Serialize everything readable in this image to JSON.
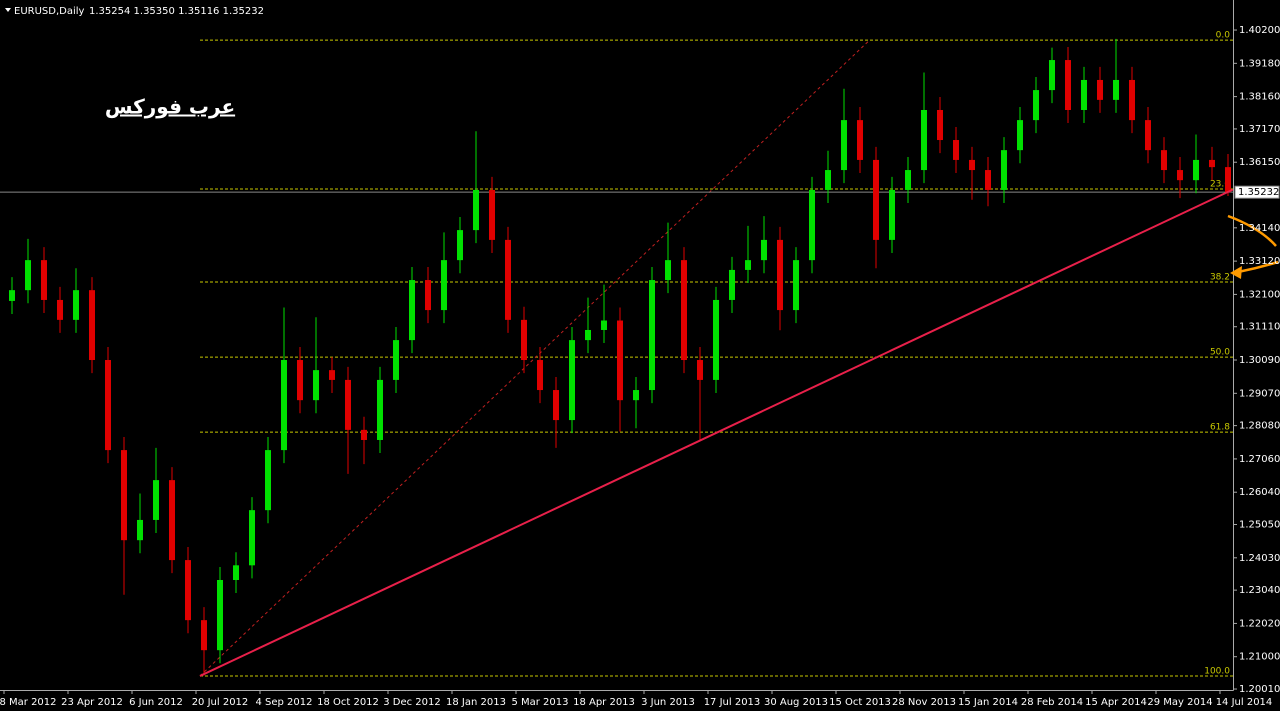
{
  "chart_data": {
    "type": "candlestick",
    "title": "EURUSD,Daily",
    "header_quote": "1.35254 1.35350 1.35116 1.35232",
    "watermark": "عرب فوركس",
    "x_labels": [
      "8 Mar 2012",
      "23 Apr 2012",
      "6 Jun 2012",
      "20 Jul 2012",
      "4 Sep 2012",
      "18 Oct 2012",
      "3 Dec 2012",
      "18 Jan 2013",
      "5 Mar 2013",
      "18 Apr 2013",
      "3 Jun 2013",
      "17 Jul 2013",
      "30 Aug 2013",
      "15 Oct 2013",
      "28 Nov 2013",
      "15 Jan 2014",
      "28 Feb 2014",
      "15 Apr 2014",
      "29 May 2014",
      "14 Jul 2014"
    ],
    "open": [
      1.319,
      1.3223,
      1.3315,
      1.3193,
      1.3132,
      1.3223,
      1.3009,
      1.2733,
      1.2457,
      1.2519,
      1.2641,
      1.2396,
      1.2212,
      1.212,
      1.2335,
      1.238,
      1.2549,
      1.2733,
      1.3009,
      1.2886,
      1.2978,
      1.2948,
      1.2795,
      1.2764,
      1.2948,
      1.307,
      1.3254,
      1.3162,
      1.3315,
      1.3407,
      1.353,
      1.3377,
      1.3132,
      1.3009,
      1.2917,
      1.2825,
      1.307,
      1.3101,
      1.313,
      1.2886,
      1.2917,
      1.3254,
      1.3315,
      1.3009,
      1.2948,
      1.3193,
      1.3285,
      1.3315,
      1.3377,
      1.3162,
      1.3315,
      1.353,
      1.3591,
      1.3744,
      1.3622,
      1.3377,
      1.353,
      1.3591,
      1.3775,
      1.3683,
      1.3622,
      1.3591,
      1.353,
      1.3652,
      1.3744,
      1.3836,
      1.3928,
      1.3775,
      1.3867,
      1.3806,
      1.3867,
      1.3744,
      1.3652,
      1.3591,
      1.356,
      1.3622,
      1.36
    ],
    "high": [
      1.3263,
      1.338,
      1.3355,
      1.3233,
      1.329,
      1.3263,
      1.3049,
      1.2773,
      1.26,
      1.274,
      1.2681,
      1.2436,
      1.2252,
      1.2375,
      1.242,
      1.2589,
      1.2773,
      1.317,
      1.3049,
      1.314,
      1.3018,
      1.2988,
      1.2835,
      1.2988,
      1.311,
      1.3294,
      1.3294,
      1.34,
      1.3447,
      1.371,
      1.357,
      1.3417,
      1.3172,
      1.3049,
      1.2957,
      1.311,
      1.32,
      1.324,
      1.317,
      1.2957,
      1.3294,
      1.343,
      1.3355,
      1.3049,
      1.3233,
      1.3325,
      1.342,
      1.345,
      1.3417,
      1.3355,
      1.357,
      1.365,
      1.384,
      1.3784,
      1.3662,
      1.357,
      1.3631,
      1.389,
      1.3815,
      1.3723,
      1.3662,
      1.3631,
      1.3692,
      1.3784,
      1.3876,
      1.3966,
      1.3968,
      1.3907,
      1.3907,
      1.3993,
      1.3907,
      1.3784,
      1.3692,
      1.3631,
      1.37,
      1.3662,
      1.364
    ],
    "low": [
      1.315,
      1.3183,
      1.3153,
      1.3092,
      1.3092,
      1.2969,
      1.2693,
      1.229,
      1.2417,
      1.2479,
      1.2356,
      1.2172,
      1.2042,
      1.208,
      1.2295,
      1.234,
      1.2509,
      1.2693,
      1.2846,
      1.2846,
      1.2908,
      1.266,
      1.269,
      1.2724,
      1.2908,
      1.303,
      1.3122,
      1.3122,
      1.3275,
      1.3367,
      1.3337,
      1.3092,
      1.2969,
      1.2877,
      1.274,
      1.2785,
      1.303,
      1.3061,
      1.279,
      1.28,
      1.2877,
      1.3214,
      1.2969,
      1.276,
      1.2908,
      1.3153,
      1.3245,
      1.3275,
      1.31,
      1.3122,
      1.3275,
      1.349,
      1.3551,
      1.3582,
      1.329,
      1.3337,
      1.349,
      1.3551,
      1.3643,
      1.3582,
      1.35,
      1.348,
      1.349,
      1.3612,
      1.3704,
      1.3796,
      1.3735,
      1.3735,
      1.3766,
      1.3766,
      1.3704,
      1.3612,
      1.3551,
      1.3505,
      1.352,
      1.356,
      1.35116
    ],
    "close": [
      1.3223,
      1.3315,
      1.3193,
      1.3132,
      1.3223,
      1.3009,
      1.2733,
      1.2457,
      1.2519,
      1.2641,
      1.2396,
      1.2212,
      1.212,
      1.2335,
      1.238,
      1.2549,
      1.2733,
      1.3009,
      1.2886,
      1.2978,
      1.2948,
      1.2795,
      1.2764,
      1.2948,
      1.307,
      1.3254,
      1.3162,
      1.3315,
      1.3407,
      1.353,
      1.3377,
      1.3132,
      1.3009,
      1.2917,
      1.2825,
      1.307,
      1.3101,
      1.313,
      1.2886,
      1.2917,
      1.3254,
      1.3315,
      1.3009,
      1.2948,
      1.3193,
      1.3285,
      1.3315,
      1.3377,
      1.3162,
      1.3315,
      1.353,
      1.3591,
      1.3744,
      1.3622,
      1.3377,
      1.353,
      1.3591,
      1.3775,
      1.3683,
      1.3622,
      1.3591,
      1.353,
      1.3652,
      1.3744,
      1.3836,
      1.3928,
      1.3775,
      1.3867,
      1.3806,
      1.3867,
      1.3744,
      1.3652,
      1.3591,
      1.356,
      1.3622,
      1.36,
      1.35232
    ],
    "up_color": "#00e000",
    "down_color": "#e00000",
    "ylim": [
      1.1998,
      1.4112
    ],
    "yticks": [
      {
        "value": 1.402,
        "label": "1.40200"
      },
      {
        "value": 1.3918,
        "label": "1.39180"
      },
      {
        "value": 1.3816,
        "label": "1.38160"
      },
      {
        "value": 1.3717,
        "label": "1.37170"
      },
      {
        "value": 1.3615,
        "label": "1.36150"
      },
      {
        "value": 1.3414,
        "label": "1.34140"
      },
      {
        "value": 1.3312,
        "label": "1.33120"
      },
      {
        "value": 1.321,
        "label": "1.32100"
      },
      {
        "value": 1.3111,
        "label": "1.31110"
      },
      {
        "value": 1.3009,
        "label": "1.30090"
      },
      {
        "value": 1.2907,
        "label": "1.29070"
      },
      {
        "value": 1.2808,
        "label": "1.28080"
      },
      {
        "value": 1.2706,
        "label": "1.27060"
      },
      {
        "value": 1.2604,
        "label": "1.26040"
      },
      {
        "value": 1.2505,
        "label": "1.25050"
      },
      {
        "value": 1.2403,
        "label": "1.24030"
      },
      {
        "value": 1.2304,
        "label": "1.23040"
      },
      {
        "value": 1.2202,
        "label": "1.22020"
      },
      {
        "value": 1.21,
        "label": "1.21000"
      },
      {
        "value": 1.2001,
        "label": "1.20010"
      }
    ],
    "current_price": {
      "value": 1.35232,
      "label": "1.35232"
    },
    "fib_levels": [
      {
        "label": "0.0",
        "price": 1.3989
      },
      {
        "label": "23.6",
        "price": 1.3533
      },
      {
        "label": "38.2",
        "price": 1.3248
      },
      {
        "label": "50.0",
        "price": 1.3018
      },
      {
        "label": "61.8",
        "price": 1.2788
      },
      {
        "label": "100.0",
        "price": 1.2041
      }
    ],
    "fib_color": "#c8c800",
    "fib_start": 11.75,
    "fib_diagonal": {
      "x": [
        11.75,
        53.6
      ],
      "y": [
        1.2041,
        1.3989
      ]
    },
    "trendline": {
      "x": [
        11.75,
        76.3
      ],
      "y": [
        1.2041,
        1.3531
      ],
      "color": "#e8204a"
    }
  }
}
